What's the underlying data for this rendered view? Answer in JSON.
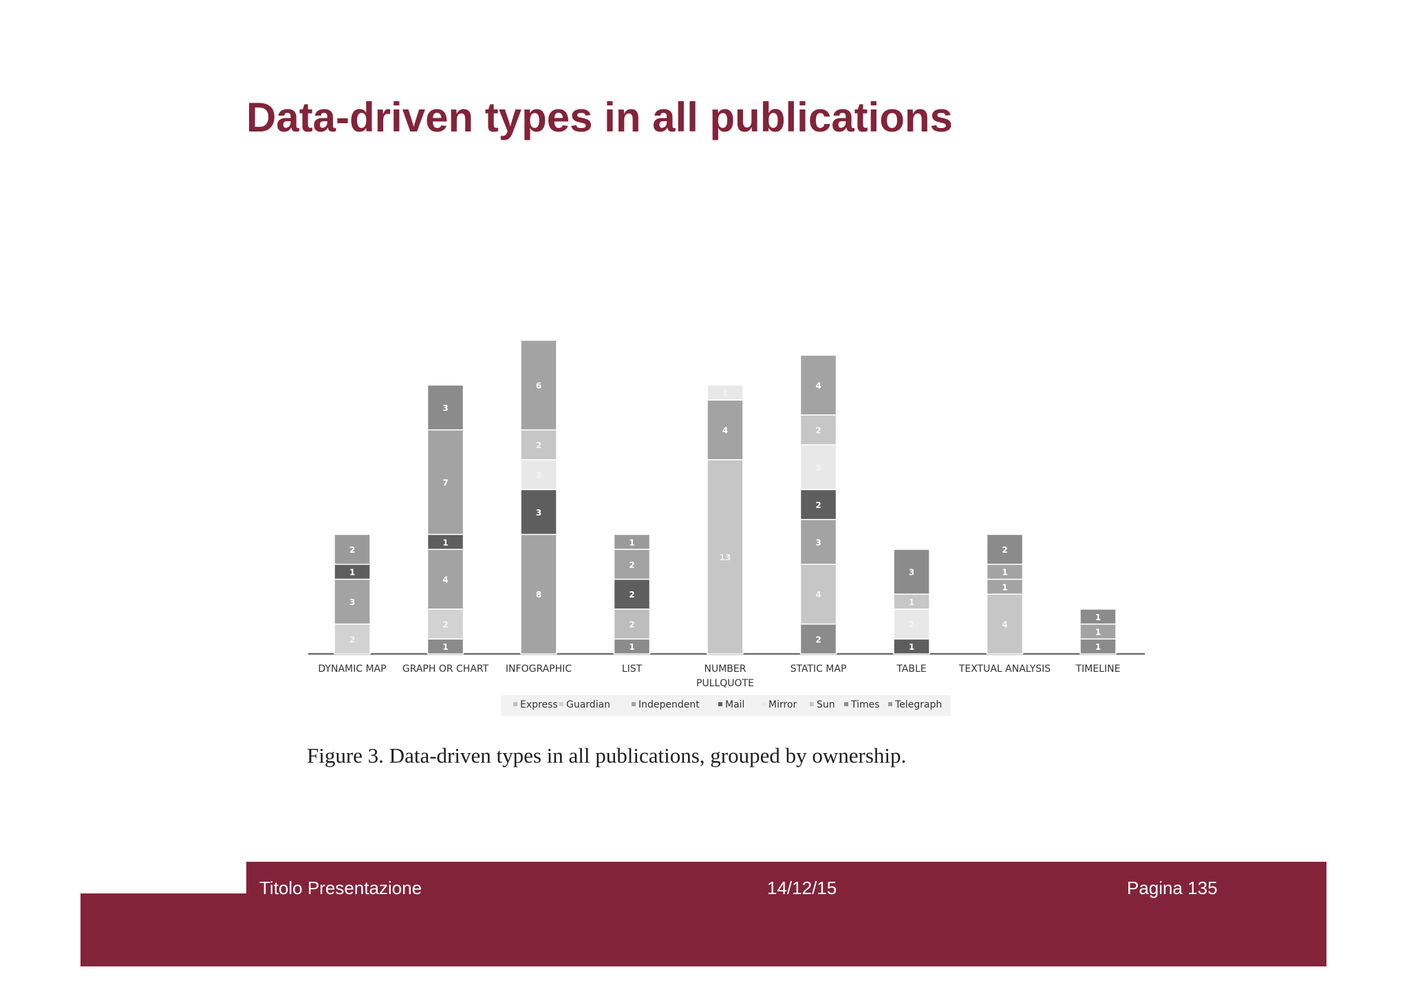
{
  "slide": {
    "title": "Data-driven types in all publications",
    "caption": "Figure 3.  Data-driven types in all publications, grouped by ownership."
  },
  "footer": {
    "presentation_title": "Titolo  Presentazione",
    "date": "14/12/15",
    "page_label": "Pagina  135"
  },
  "colors": {
    "accent": "#83233a",
    "Express": "#bdbdbd",
    "Guardian": "#d2d2d2",
    "Independent": "#a3a3a3",
    "Mail": "#5e5e5e",
    "Mirror": "#e8e8e8",
    "Sun": "#c6c6c6",
    "Times": "#8b8b8b",
    "Telegraph": "#9a9a9a"
  },
  "chart_data": {
    "type": "bar",
    "stacked": true,
    "title": "",
    "xlabel": "",
    "ylabel": "",
    "ylim": [
      0,
      21
    ],
    "grid": false,
    "legend_position": "bottom",
    "legend": [
      "Express",
      "Guardian",
      "Independent",
      "Mail",
      "Mirror",
      "Sun",
      "Times",
      "Telegraph"
    ],
    "categories": [
      {
        "lines": [
          "DYNAMIC MAP"
        ]
      },
      {
        "lines": [
          "GRAPH OR CHART"
        ]
      },
      {
        "lines": [
          "INFOGRAPHIC"
        ]
      },
      {
        "lines": [
          "LIST"
        ]
      },
      {
        "lines": [
          "NUMBER",
          "PULLQUOTE"
        ]
      },
      {
        "lines": [
          "STATIC MAP"
        ]
      },
      {
        "lines": [
          "TABLE"
        ]
      },
      {
        "lines": [
          "TEXTUAL ANALYSIS"
        ]
      },
      {
        "lines": [
          "TIMELINE"
        ]
      }
    ],
    "stacks": [
      [
        {
          "value": 2,
          "color": "#d2d2d2"
        },
        {
          "value": 3,
          "color": "#a3a3a3"
        },
        {
          "value": 1,
          "color": "#5e5e5e"
        },
        {
          "value": 2,
          "color": "#9a9a9a"
        }
      ],
      [
        {
          "value": 1,
          "color": "#8b8b8b"
        },
        {
          "value": 2,
          "color": "#d2d2d2"
        },
        {
          "value": 4,
          "color": "#a3a3a3"
        },
        {
          "value": 1,
          "color": "#5e5e5e"
        },
        {
          "value": 7,
          "color": "#a3a3a3"
        },
        {
          "value": 3,
          "color": "#8b8b8b"
        }
      ],
      [
        {
          "value": 8,
          "color": "#a3a3a3"
        },
        {
          "value": 3,
          "color": "#5e5e5e"
        },
        {
          "value": 2,
          "color": "#e8e8e8"
        },
        {
          "value": 2,
          "color": "#c6c6c6"
        },
        {
          "value": 6,
          "color": "#a3a3a3"
        }
      ],
      [
        {
          "value": 1,
          "color": "#8b8b8b"
        },
        {
          "value": 2,
          "color": "#bdbdbd"
        },
        {
          "value": 2,
          "color": "#5e5e5e"
        },
        {
          "value": 2,
          "color": "#a3a3a3"
        },
        {
          "value": 1,
          "color": "#9a9a9a"
        }
      ],
      [
        {
          "value": 13,
          "color": "#c6c6c6"
        },
        {
          "value": 4,
          "color": "#a3a3a3"
        },
        {
          "value": 1,
          "color": "#e8e8e8"
        }
      ],
      [
        {
          "value": 2,
          "color": "#8b8b8b"
        },
        {
          "value": 4,
          "color": "#c6c6c6"
        },
        {
          "value": 3,
          "color": "#a3a3a3"
        },
        {
          "value": 2,
          "color": "#5e5e5e"
        },
        {
          "value": 3,
          "color": "#e8e8e8"
        },
        {
          "value": 2,
          "color": "#c6c6c6"
        },
        {
          "value": 4,
          "color": "#a3a3a3"
        }
      ],
      [
        {
          "value": 1,
          "color": "#5e5e5e"
        },
        {
          "value": 2,
          "color": "#e8e8e8"
        },
        {
          "value": 1,
          "color": "#c6c6c6"
        },
        {
          "value": 3,
          "color": "#8b8b8b"
        }
      ],
      [
        {
          "value": 4,
          "color": "#c6c6c6"
        },
        {
          "value": 1,
          "color": "#a3a3a3"
        },
        {
          "value": 1,
          "color": "#a3a3a3"
        },
        {
          "value": 2,
          "color": "#8b8b8b"
        }
      ],
      [
        {
          "value": 1,
          "color": "#8b8b8b"
        },
        {
          "value": 1,
          "color": "#a3a3a3"
        },
        {
          "value": 1,
          "color": "#8b8b8b"
        }
      ]
    ]
  }
}
